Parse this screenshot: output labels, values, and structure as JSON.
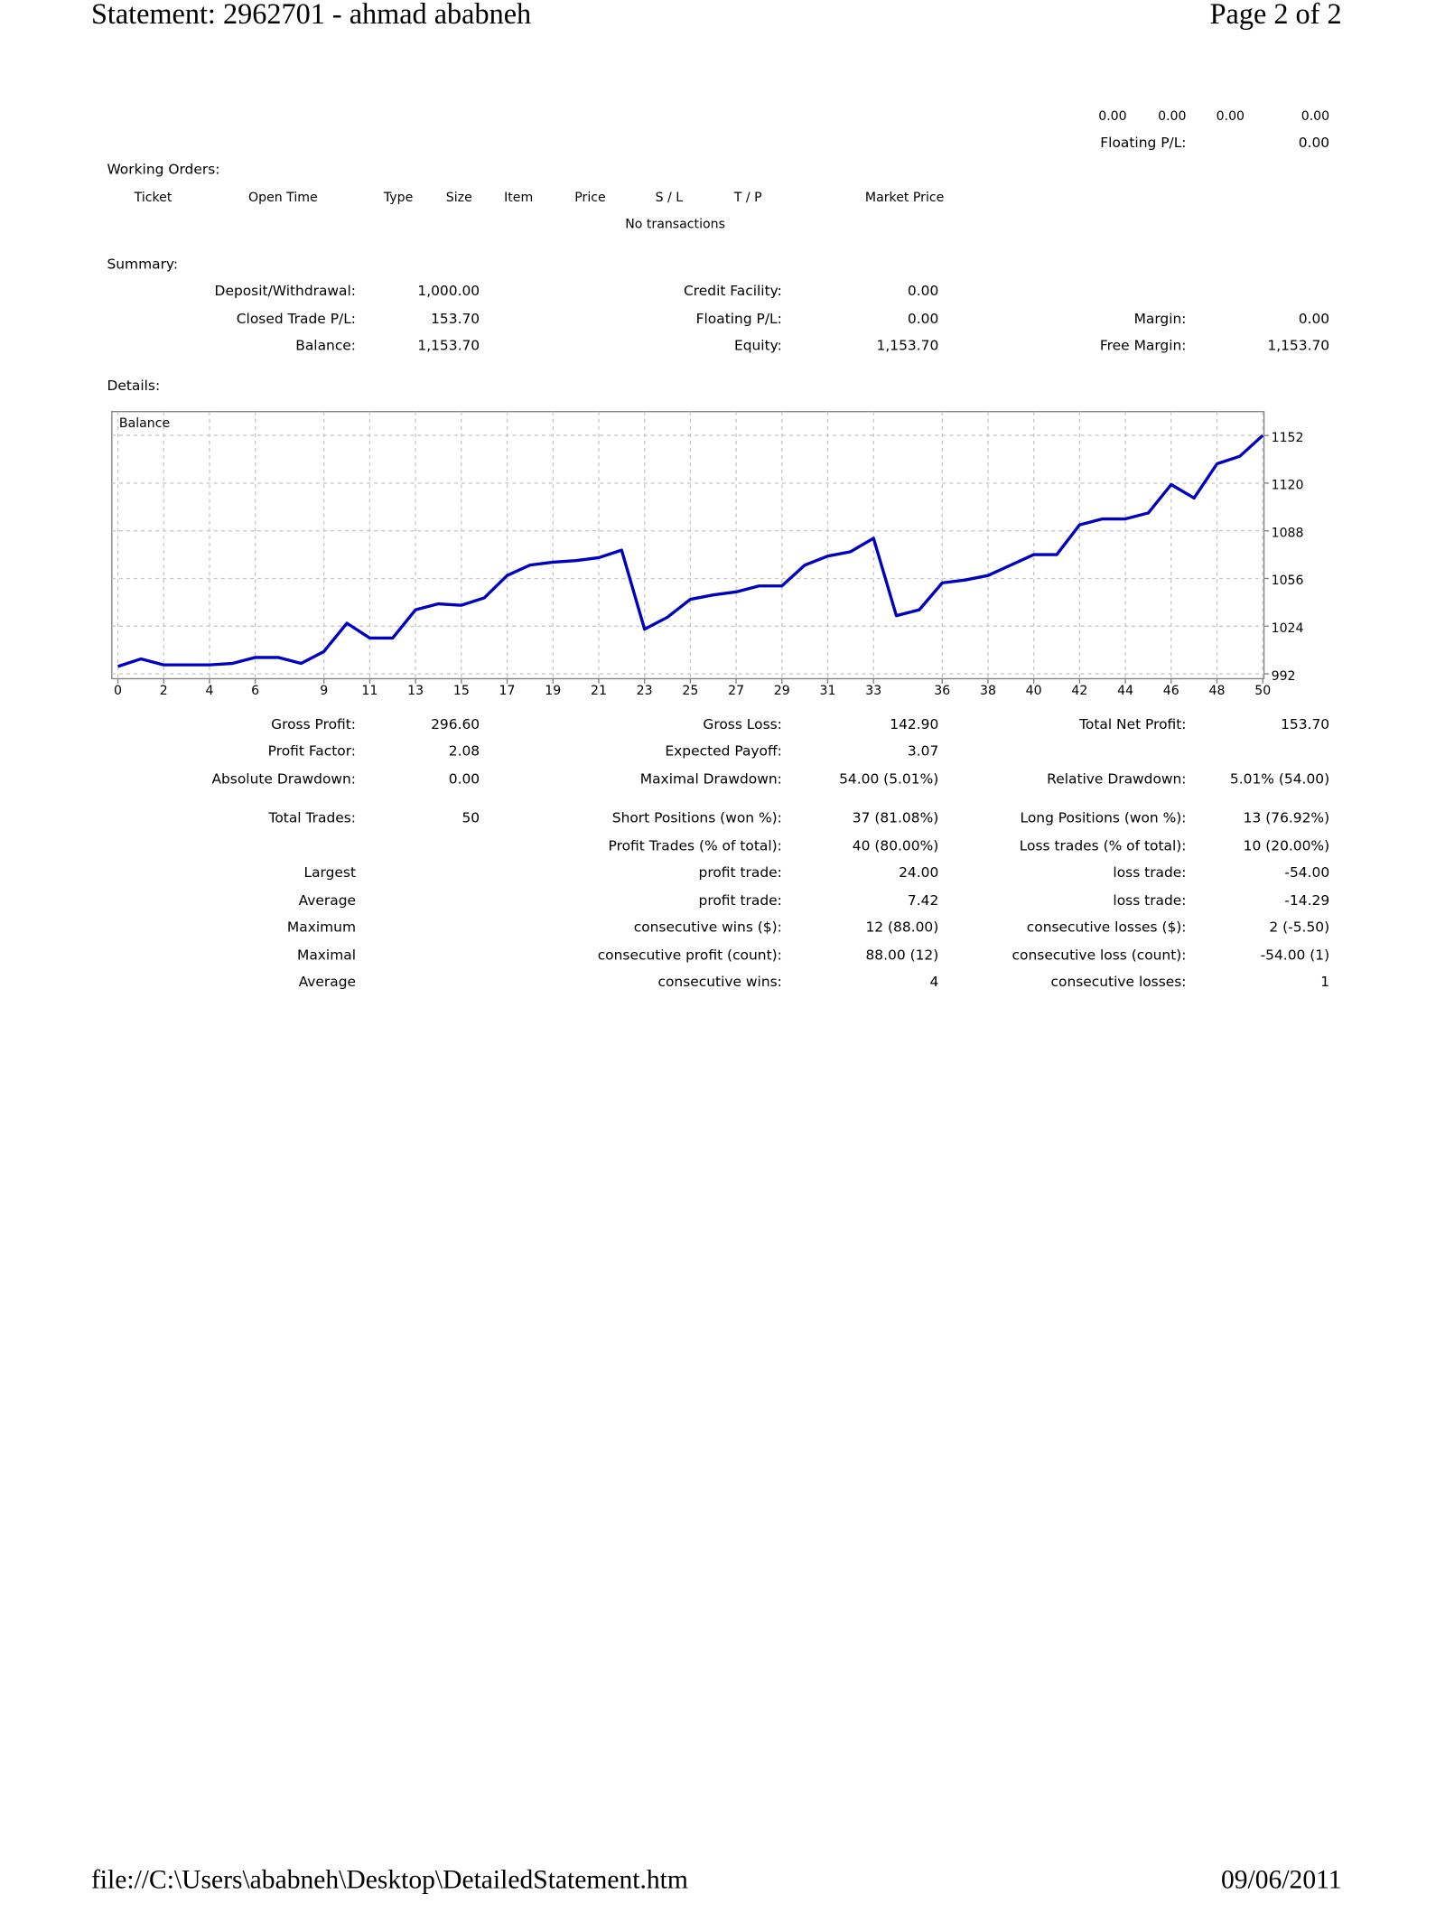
{
  "header": {
    "title": "Statement: 2962701 - ahmad ababneh",
    "page": "Page 2 of 2"
  },
  "totals": {
    "values": [
      "0.00",
      "0.00",
      "0.00",
      "0.00"
    ],
    "floating_label": "Floating P/L:",
    "floating_value": "0.00"
  },
  "working_orders": {
    "title": "Working Orders:",
    "columns": [
      "Ticket",
      "Open Time",
      "Type",
      "Size",
      "Item",
      "Price",
      "S / L",
      "T / P",
      "Market Price"
    ],
    "empty": "No transactions"
  },
  "summary": {
    "title": "Summary:",
    "rows": [
      {
        "a": {
          "label": "Deposit/Withdrawal:",
          "value": "1,000.00"
        },
        "b": {
          "label": "Credit Facility:",
          "value": "0.00"
        }
      },
      {
        "a": {
          "label": "Closed Trade P/L:",
          "value": "153.70"
        },
        "b": {
          "label": "Floating P/L:",
          "value": "0.00"
        },
        "c": {
          "label": "Margin:",
          "value": "0.00"
        }
      },
      {
        "a": {
          "label": "Balance:",
          "value": "1,153.70"
        },
        "b": {
          "label": "Equity:",
          "value": "1,153.70"
        },
        "c": {
          "label": "Free Margin:",
          "value": "1,153.70"
        }
      }
    ]
  },
  "details": {
    "title": "Details:",
    "chart": {
      "type": "line",
      "title": "Balance",
      "color": "#0000c0",
      "grid": true,
      "x": [
        0,
        1,
        2,
        3,
        4,
        5,
        6,
        7,
        8,
        9,
        10,
        11,
        12,
        13,
        14,
        15,
        16,
        17,
        18,
        19,
        20,
        21,
        22,
        23,
        24,
        25,
        26,
        27,
        28,
        29,
        30,
        31,
        32,
        33,
        34,
        35,
        36,
        37,
        38,
        39,
        40,
        41,
        42,
        43,
        44,
        45,
        46,
        47,
        48,
        49,
        50
      ],
      "values": [
        997,
        1002,
        998,
        998,
        998,
        999,
        1003,
        1003,
        999,
        1007,
        1026,
        1016,
        1016,
        1035,
        1039,
        1038,
        1043,
        1058,
        1065,
        1067,
        1068,
        1070,
        1075,
        1022,
        1030,
        1042,
        1045,
        1047,
        1051,
        1051,
        1065,
        1071,
        1074,
        1083,
        1031,
        1035,
        1053,
        1055,
        1058,
        1065,
        1072,
        1072,
        1092,
        1096,
        1096,
        1100,
        1119,
        1110,
        1133,
        1138,
        1152
      ],
      "xlim": [
        0,
        50
      ],
      "ylim": [
        992,
        1168
      ],
      "xticks": [
        0,
        2,
        4,
        6,
        9,
        11,
        13,
        15,
        17,
        19,
        21,
        23,
        25,
        27,
        29,
        31,
        33,
        36,
        38,
        40,
        42,
        44,
        46,
        48,
        50
      ],
      "yticks": [
        992,
        1024,
        1056,
        1088,
        1120,
        1152
      ]
    },
    "rows": [
      {
        "a": {
          "label": "Gross Profit:",
          "value": "296.60"
        },
        "b": {
          "label": "Gross Loss:",
          "value": "142.90"
        },
        "c": {
          "label": "Total Net Profit:",
          "value": "153.70"
        }
      },
      {
        "a": {
          "label": "Profit Factor:",
          "value": "2.08"
        },
        "b": {
          "label": "Expected Payoff:",
          "value": "3.07"
        }
      },
      {
        "a": {
          "label": "Absolute Drawdown:",
          "value": "0.00"
        },
        "b": {
          "label": "Maximal Drawdown:",
          "value": "54.00 (5.01%)"
        },
        "c": {
          "label": "Relative Drawdown:",
          "value": "5.01% (54.00)"
        }
      },
      {
        "a": {
          "label": "Total Trades:",
          "value": "50"
        },
        "b": {
          "label": "Short Positions (won %):",
          "value": "37 (81.08%)"
        },
        "c": {
          "label": "Long Positions (won %):",
          "value": "13 (76.92%)"
        }
      },
      {
        "b": {
          "label": "Profit Trades (% of total):",
          "value": "40 (80.00%)"
        },
        "c": {
          "label": "Loss trades (% of total):",
          "value": "10 (20.00%)"
        }
      },
      {
        "a": {
          "label": "Largest"
        },
        "b": {
          "label": "profit trade:",
          "value": "24.00"
        },
        "c": {
          "label": "loss trade:",
          "value": "-54.00"
        }
      },
      {
        "a": {
          "label": "Average"
        },
        "b": {
          "label": "profit trade:",
          "value": "7.42"
        },
        "c": {
          "label": "loss trade:",
          "value": "-14.29"
        }
      },
      {
        "a": {
          "label": "Maximum"
        },
        "b": {
          "label": "consecutive wins ($):",
          "value": "12 (88.00)"
        },
        "c": {
          "label": "consecutive losses ($):",
          "value": "2 (-5.50)"
        }
      },
      {
        "a": {
          "label": "Maximal"
        },
        "b": {
          "label": "consecutive profit (count):",
          "value": "88.00 (12)"
        },
        "c": {
          "label": "consecutive loss (count):",
          "value": "-54.00 (1)"
        }
      },
      {
        "a": {
          "label": "Average"
        },
        "b": {
          "label": "consecutive wins:",
          "value": "4"
        },
        "c": {
          "label": "consecutive losses:",
          "value": "1"
        }
      }
    ]
  },
  "footer": {
    "path": "file://C:\\Users\\ababneh\\Desktop\\DetailedStatement.htm",
    "date": "09/06/2011"
  }
}
